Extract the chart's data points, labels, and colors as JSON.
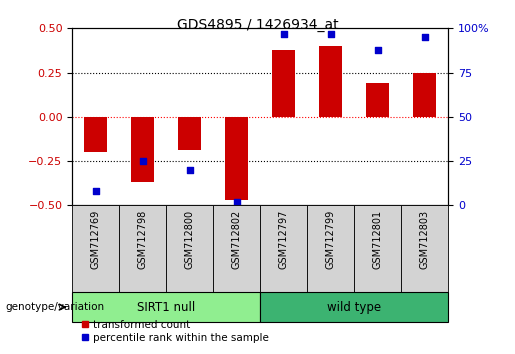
{
  "title": "GDS4895 / 1426934_at",
  "samples": [
    "GSM712769",
    "GSM712798",
    "GSM712800",
    "GSM712802",
    "GSM712797",
    "GSM712799",
    "GSM712801",
    "GSM712803"
  ],
  "bar_values": [
    -0.2,
    -0.37,
    -0.19,
    -0.47,
    0.38,
    0.4,
    0.19,
    0.25
  ],
  "percentile_values": [
    8,
    25,
    20,
    2,
    97,
    97,
    88,
    95
  ],
  "groups": [
    {
      "label": "SIRT1 null",
      "start": 0,
      "end": 4,
      "color": "#90ee90"
    },
    {
      "label": "wild type",
      "start": 4,
      "end": 8,
      "color": "#3cb371"
    }
  ],
  "bar_color": "#cc0000",
  "dot_color": "#0000cc",
  "ylim_left": [
    -0.5,
    0.5
  ],
  "ylim_right": [
    0,
    100
  ],
  "yticks_left": [
    -0.5,
    -0.25,
    0,
    0.25,
    0.5
  ],
  "yticks_right": [
    0,
    25,
    50,
    75,
    100
  ],
  "hlines_black": [
    -0.25,
    0.25
  ],
  "hline_red": 0,
  "legend_items": [
    {
      "color": "#cc0000",
      "label": "transformed count"
    },
    {
      "color": "#0000cc",
      "label": "percentile rank within the sample"
    }
  ],
  "genotype_label": "genotype/variation",
  "bar_width": 0.5,
  "tick_label_fontsize": 7,
  "title_fontsize": 10,
  "axis_color_left": "#cc0000",
  "axis_color_right": "#0000cc",
  "sample_box_color": "#d3d3d3",
  "fig_width": 5.15,
  "fig_height": 3.54,
  "dpi": 100
}
